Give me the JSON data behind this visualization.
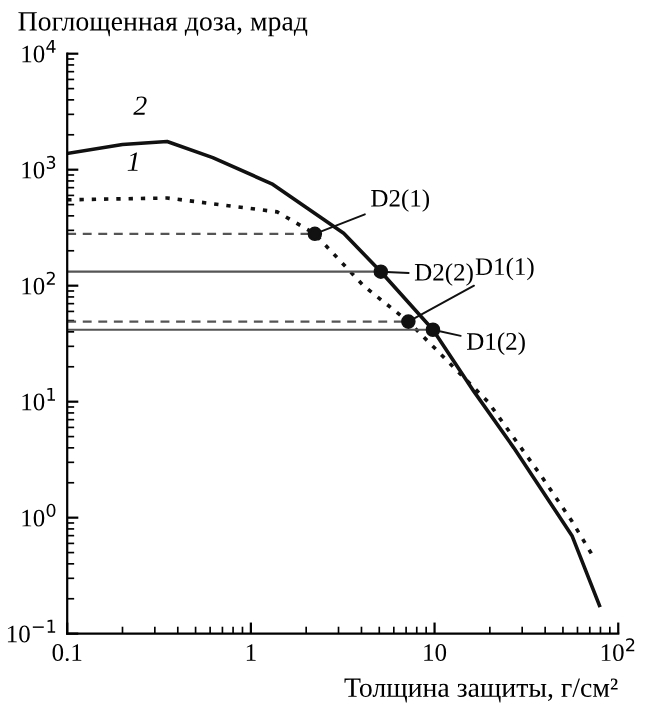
{
  "chart_data": {
    "type": "line",
    "xlabel": "Толщина защиты, г/см²",
    "ylabel": "Поглощенная доза, мрад",
    "log": "xy",
    "grid": false,
    "legend": false,
    "xlim": [
      0.1,
      100
    ],
    "ylim": [
      0.1,
      10000
    ],
    "xticks": [
      0.1,
      1,
      10,
      {
        "value": 100,
        "label": "10$^{2}$"
      }
    ],
    "yticks": [
      {
        "value": 0.1,
        "label": "10$^{−1}$"
      },
      {
        "value": 1,
        "label": "10$^{0}$"
      },
      {
        "value": 10,
        "label": "10$^{1}$"
      },
      {
        "value": 100,
        "label": "10$^{2}$"
      },
      {
        "value": 1000,
        "label": "10$^{3}$"
      },
      {
        "value": 10000,
        "label": "10$^{4}$"
      }
    ],
    "series": [
      {
        "color": "#111111",
        "line_style": "solid",
        "marker": "none",
        "x": [
          0.1,
          0.2,
          0.35,
          0.62,
          1.3,
          3.2,
          5.1,
          9.8,
          16.4,
          27,
          56,
          79
        ],
        "values": [
          1380,
          1650,
          1750,
          1270,
          755,
          283,
          132,
          41.7,
          12.2,
          4.0,
          0.7,
          0.175
        ]
      },
      {
        "color": "#111111",
        "line_style": "dotted",
        "marker": "none",
        "x": [
          0.1,
          0.35,
          1.39,
          2.23,
          4.1,
          7.2,
          19.5,
          38,
          56,
          72
        ],
        "values": [
          550,
          570,
          433,
          280,
          100,
          49,
          10,
          2.3,
          0.93,
          0.48
        ]
      },
      {
        "type": "line",
        "color": "#555555",
        "line_style": "dashed",
        "marker": "none",
        "x": [
          0.1,
          2.23
        ],
        "values": [
          280,
          280
        ]
      },
      {
        "type": "line",
        "color": "#555555",
        "line_style": "solid",
        "marker": "none",
        "x": [
          0.1,
          5.1
        ],
        "values": [
          132,
          132
        ]
      },
      {
        "type": "line",
        "color": "#555555",
        "line_style": "dashed",
        "marker": "none",
        "x": [
          0.1,
          7.2
        ],
        "values": [
          49,
          49
        ]
      },
      {
        "type": "line",
        "color": "#555555",
        "line_style": "solid",
        "marker": "none",
        "x": [
          0.1,
          9.8
        ],
        "values": [
          41.7,
          41.7
        ]
      },
      {
        "type": "scatter",
        "color": "#111111",
        "marker": "circle",
        "x": [
          2.23,
          5.1,
          7.2,
          9.8
        ],
        "values": [
          280,
          132,
          49,
          41.7
        ]
      }
    ],
    "annotations": [
      {
        "text": "2",
        "x": 0.25,
        "y": 1700
      },
      {
        "text": "1",
        "x": 0.23,
        "y": 560
      },
      {
        "text": "D2(1)",
        "x": 2.23,
        "y": 280
      },
      {
        "text": "D2(2)",
        "x": 5.1,
        "y": 132
      },
      {
        "text": "D1(1)",
        "x": 7.2,
        "y": 49
      },
      {
        "text": "D1(2)",
        "x": 9.8,
        "y": 41.7
      }
    ]
  }
}
